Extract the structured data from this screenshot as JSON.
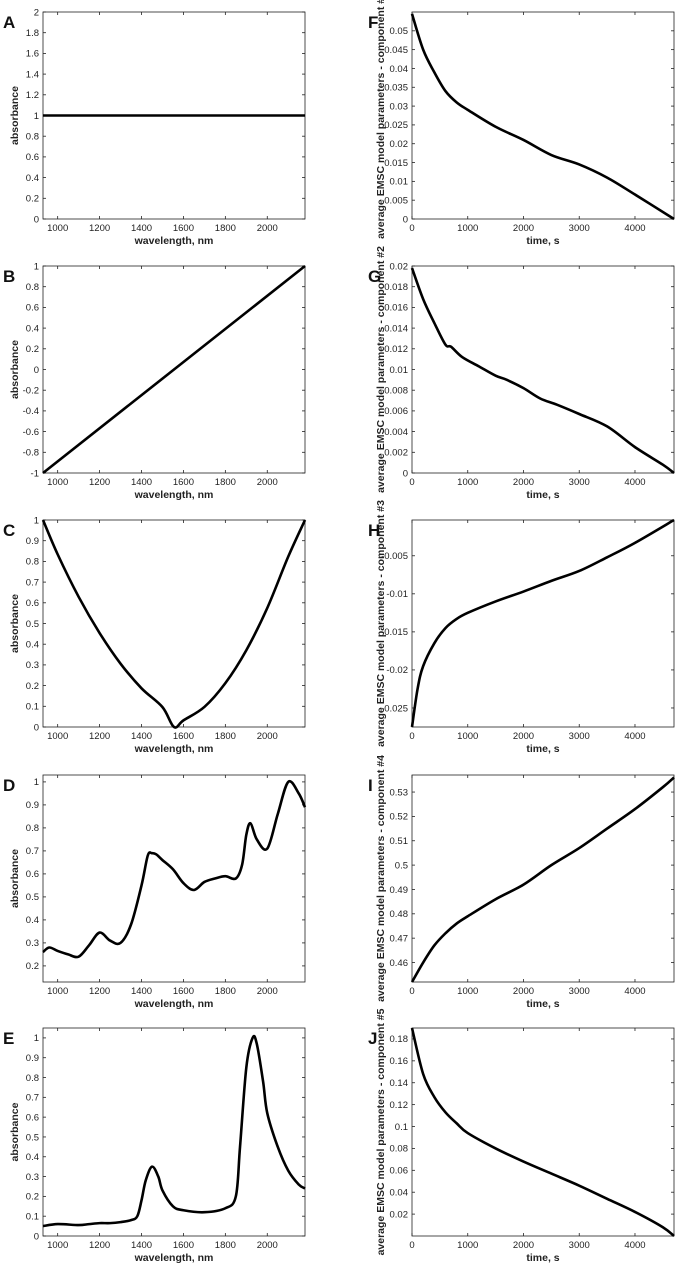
{
  "chart_data": [
    {
      "id": "A",
      "type": "line",
      "letter": "A",
      "xlabel": "wavelength, nm",
      "ylabel": "absorbance",
      "xlim": [
        930,
        2180
      ],
      "ylim": [
        0,
        2
      ],
      "xticks": [
        1000,
        1200,
        1400,
        1600,
        1800,
        2000
      ],
      "yticks": [
        0,
        0.2,
        0.4,
        0.6,
        0.8,
        1,
        1.2,
        1.4,
        1.6,
        1.8,
        2
      ],
      "x": [
        930,
        2180
      ],
      "y": [
        1,
        1
      ]
    },
    {
      "id": "F",
      "type": "line",
      "letter": "F",
      "xlabel": "time, s",
      "ylabel": "average EMSC model parameters - component #1",
      "xlim": [
        0,
        4700
      ],
      "ylim": [
        0,
        0.055
      ],
      "xticks": [
        0,
        1000,
        2000,
        3000,
        4000
      ],
      "yticks": [
        0,
        0.005,
        0.01,
        0.015,
        0.02,
        0.025,
        0.03,
        0.035,
        0.04,
        0.045,
        0.05
      ],
      "x": [
        0,
        200,
        400,
        600,
        800,
        1000,
        1500,
        2000,
        2500,
        3000,
        3500,
        4000,
        4700
      ],
      "y": [
        0.0545,
        0.045,
        0.039,
        0.034,
        0.031,
        0.029,
        0.0245,
        0.021,
        0.017,
        0.0145,
        0.011,
        0.0065,
        0.0
      ]
    },
    {
      "id": "B",
      "type": "line",
      "letter": "B",
      "xlabel": "wavelength, nm",
      "ylabel": "absorbance",
      "xlim": [
        930,
        2180
      ],
      "ylim": [
        -1,
        1
      ],
      "xticks": [
        1000,
        1200,
        1400,
        1600,
        1800,
        2000
      ],
      "yticks": [
        -1,
        -0.8,
        -0.6,
        -0.4,
        -0.2,
        0,
        0.2,
        0.4,
        0.6,
        0.8,
        1
      ],
      "x": [
        930,
        2180
      ],
      "y": [
        -1,
        1
      ]
    },
    {
      "id": "G",
      "type": "line",
      "letter": "G",
      "xlabel": "time, s",
      "ylabel": "average EMSC model parameters - component #2",
      "xlim": [
        0,
        4700
      ],
      "ylim": [
        0,
        0.02
      ],
      "xticks": [
        0,
        1000,
        2000,
        3000,
        4000
      ],
      "yticks": [
        0,
        0.002,
        0.004,
        0.006,
        0.008,
        0.01,
        0.012,
        0.014,
        0.016,
        0.018,
        0.02
      ],
      "x": [
        0,
        200,
        400,
        600,
        700,
        900,
        1200,
        1500,
        1700,
        2000,
        2300,
        2600,
        3000,
        3500,
        4000,
        4500,
        4700
      ],
      "y": [
        0.0198,
        0.0168,
        0.0145,
        0.0124,
        0.0122,
        0.0112,
        0.0103,
        0.0094,
        0.009,
        0.0082,
        0.0072,
        0.0066,
        0.0057,
        0.0045,
        0.0025,
        0.0008,
        0.0
      ]
    },
    {
      "id": "C",
      "type": "line",
      "letter": "C",
      "xlabel": "wavelength, nm",
      "ylabel": "absorbance",
      "xlim": [
        930,
        2180
      ],
      "ylim": [
        0,
        1
      ],
      "xticks": [
        1000,
        1200,
        1400,
        1600,
        1800,
        2000
      ],
      "yticks": [
        0,
        0.1,
        0.2,
        0.3,
        0.4,
        0.5,
        0.6,
        0.7,
        0.8,
        0.9,
        1
      ],
      "x": [
        930,
        1000,
        1100,
        1200,
        1300,
        1400,
        1500,
        1555,
        1600,
        1700,
        1800,
        1900,
        2000,
        2100,
        2180
      ],
      "y": [
        1,
        0.834,
        0.629,
        0.454,
        0.306,
        0.187,
        0.096,
        0.0,
        0.032,
        0.097,
        0.212,
        0.371,
        0.575,
        0.823,
        1
      ]
    },
    {
      "id": "H",
      "type": "line",
      "letter": "H",
      "xlabel": "time, s",
      "ylabel": "average EMSC model parameters - component #3",
      "xlim": [
        0,
        4700
      ],
      "ylim": [
        -0.0275,
        -0.0003
      ],
      "xticks": [
        0,
        1000,
        2000,
        3000,
        4000
      ],
      "yticks": [
        -0.025,
        -0.02,
        -0.015,
        -0.01,
        -0.005
      ],
      "x": [
        0,
        100,
        200,
        400,
        600,
        800,
        1000,
        1500,
        2000,
        2500,
        3000,
        3500,
        4000,
        4700
      ],
      "y": [
        -0.0275,
        -0.0225,
        -0.0195,
        -0.0165,
        -0.0145,
        -0.0133,
        -0.0125,
        -0.011,
        -0.0097,
        -0.0083,
        -0.007,
        -0.0052,
        -0.0033,
        -0.0003
      ]
    },
    {
      "id": "D",
      "type": "line",
      "letter": "D",
      "xlabel": "wavelength, nm",
      "ylabel": "absorbance",
      "xlim": [
        930,
        2180
      ],
      "ylim": [
        0.13,
        1.03
      ],
      "xticks": [
        1000,
        1200,
        1400,
        1600,
        1800,
        2000
      ],
      "yticks": [
        0.2,
        0.3,
        0.4,
        0.5,
        0.6,
        0.7,
        0.8,
        0.9,
        1
      ],
      "x": [
        930,
        960,
        1000,
        1050,
        1100,
        1150,
        1200,
        1250,
        1300,
        1350,
        1400,
        1430,
        1450,
        1470,
        1500,
        1550,
        1600,
        1650,
        1700,
        1750,
        1800,
        1850,
        1880,
        1900,
        1920,
        1950,
        2000,
        2050,
        2100,
        2150,
        2180
      ],
      "y": [
        0.26,
        0.28,
        0.265,
        0.25,
        0.24,
        0.29,
        0.345,
        0.31,
        0.3,
        0.38,
        0.55,
        0.68,
        0.69,
        0.685,
        0.66,
        0.62,
        0.56,
        0.53,
        0.565,
        0.58,
        0.59,
        0.58,
        0.64,
        0.77,
        0.82,
        0.75,
        0.71,
        0.86,
        1.0,
        0.95,
        0.89
      ]
    },
    {
      "id": "I",
      "type": "line",
      "letter": "I",
      "xlabel": "time, s",
      "ylabel": "average EMSC model parameters - component #4",
      "xlim": [
        0,
        4700
      ],
      "ylim": [
        0.452,
        0.537
      ],
      "xticks": [
        0,
        1000,
        2000,
        3000,
        4000
      ],
      "yticks": [
        0.46,
        0.47,
        0.48,
        0.49,
        0.5,
        0.51,
        0.52,
        0.53
      ],
      "x": [
        0,
        200,
        400,
        600,
        800,
        1000,
        1500,
        2000,
        2500,
        3000,
        3500,
        4000,
        4500,
        4700
      ],
      "y": [
        0.452,
        0.46,
        0.467,
        0.472,
        0.476,
        0.479,
        0.486,
        0.492,
        0.5,
        0.507,
        0.515,
        0.523,
        0.532,
        0.536
      ]
    },
    {
      "id": "E",
      "type": "line",
      "letter": "E",
      "xlabel": "wavelength, nm",
      "ylabel": "absorbance",
      "xlim": [
        930,
        2180
      ],
      "ylim": [
        0,
        1.05
      ],
      "xticks": [
        1000,
        1200,
        1400,
        1600,
        1800,
        2000
      ],
      "yticks": [
        0,
        0.1,
        0.2,
        0.3,
        0.4,
        0.5,
        0.6,
        0.7,
        0.8,
        0.9,
        1
      ],
      "x": [
        930,
        1000,
        1100,
        1150,
        1200,
        1250,
        1300,
        1350,
        1380,
        1400,
        1420,
        1450,
        1480,
        1500,
        1550,
        1600,
        1700,
        1800,
        1850,
        1870,
        1900,
        1930,
        1950,
        1980,
        2000,
        2050,
        2100,
        2150,
        2180
      ],
      "y": [
        0.05,
        0.06,
        0.055,
        0.06,
        0.065,
        0.065,
        0.07,
        0.08,
        0.1,
        0.18,
        0.28,
        0.35,
        0.3,
        0.23,
        0.15,
        0.13,
        0.12,
        0.14,
        0.2,
        0.45,
        0.85,
        1.0,
        0.97,
        0.78,
        0.62,
        0.45,
        0.33,
        0.26,
        0.24
      ]
    },
    {
      "id": "J",
      "type": "line",
      "letter": "J",
      "xlabel": "time, s",
      "ylabel": "average EMSC model parameters - component #5",
      "xlim": [
        0,
        4700
      ],
      "ylim": [
        0,
        0.19
      ],
      "xticks": [
        0,
        1000,
        2000,
        3000,
        4000
      ],
      "yticks": [
        0.02,
        0.04,
        0.06,
        0.08,
        0.1,
        0.12,
        0.14,
        0.16,
        0.18
      ],
      "x": [
        0,
        200,
        400,
        600,
        800,
        1000,
        1500,
        2000,
        2500,
        3000,
        3500,
        4000,
        4500,
        4700
      ],
      "y": [
        0.19,
        0.148,
        0.127,
        0.113,
        0.103,
        0.094,
        0.08,
        0.068,
        0.057,
        0.046,
        0.034,
        0.022,
        0.008,
        0.0
      ]
    }
  ]
}
